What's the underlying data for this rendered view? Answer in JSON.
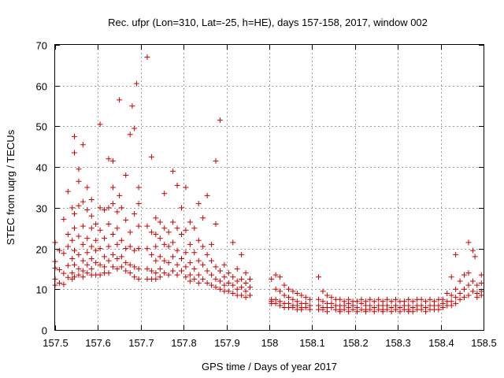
{
  "chart_data": {
    "type": "scatter",
    "title": "Rec. ufpr (Lon=310, Lat=-25, h=HE), days 157-158, 2017, window 002",
    "xlabel": "GPS time / Days of year 2017",
    "ylabel": "STEC from uqrg / TECUs",
    "xlim": [
      157.5,
      158.5
    ],
    "ylim": [
      0,
      70
    ],
    "xticks": [
      157.5,
      157.6,
      157.7,
      157.8,
      157.9,
      158.0,
      158.1,
      158.2,
      158.3,
      158.4,
      158.5
    ],
    "xtick_labels": [
      "157.5",
      "157.6",
      "157.7",
      "157.8",
      "157.9",
      "158",
      "158.1",
      "158.2",
      "158.3",
      "158.4",
      "158.5"
    ],
    "yticks": [
      0,
      10,
      20,
      30,
      40,
      50,
      60,
      70
    ],
    "ytick_labels": [
      "0",
      "10",
      "20",
      "30",
      "40",
      "50",
      "60",
      "70"
    ],
    "grid": true,
    "marker": "+",
    "color": "#cc0000",
    "points": [
      [
        157.5,
        21.5
      ],
      [
        157.5,
        16.8
      ],
      [
        157.5,
        15.2
      ],
      [
        157.5,
        12.5
      ],
      [
        157.5,
        11.0
      ],
      [
        157.51,
        19.5
      ],
      [
        157.51,
        14.8
      ],
      [
        157.51,
        11.5
      ],
      [
        157.52,
        27.2
      ],
      [
        157.52,
        18.8
      ],
      [
        157.52,
        13.9
      ],
      [
        157.52,
        11.2
      ],
      [
        157.53,
        34.0
      ],
      [
        157.53,
        23.5
      ],
      [
        157.53,
        20.5
      ],
      [
        157.53,
        15.8
      ],
      [
        157.53,
        12.9
      ],
      [
        157.54,
        30.0
      ],
      [
        157.54,
        22.0
      ],
      [
        157.54,
        17.5
      ],
      [
        157.54,
        14.0
      ],
      [
        157.54,
        12.5
      ],
      [
        157.545,
        47.5
      ],
      [
        157.545,
        43.5
      ],
      [
        157.545,
        28.5
      ],
      [
        157.545,
        25.0
      ],
      [
        157.545,
        19.5
      ],
      [
        157.545,
        16.0
      ],
      [
        157.545,
        13.0
      ],
      [
        157.555,
        39.5
      ],
      [
        157.555,
        36.5
      ],
      [
        157.555,
        30.5
      ],
      [
        157.555,
        23.0
      ],
      [
        157.555,
        18.5
      ],
      [
        157.555,
        15.0
      ],
      [
        157.555,
        13.5
      ],
      [
        157.565,
        45.5
      ],
      [
        157.565,
        31.5
      ],
      [
        157.565,
        25.5
      ],
      [
        157.565,
        21.0
      ],
      [
        157.565,
        17.0
      ],
      [
        157.565,
        14.5
      ],
      [
        157.565,
        13.0
      ],
      [
        157.575,
        35.0
      ],
      [
        157.575,
        29.5
      ],
      [
        157.575,
        22.5
      ],
      [
        157.575,
        19.0
      ],
      [
        157.575,
        16.0
      ],
      [
        157.575,
        14.0
      ],
      [
        157.585,
        32.0
      ],
      [
        157.585,
        28.0
      ],
      [
        157.585,
        25.0
      ],
      [
        157.585,
        20.5
      ],
      [
        157.585,
        17.5
      ],
      [
        157.585,
        15.0
      ],
      [
        157.585,
        13.5
      ],
      [
        157.595,
        26.0
      ],
      [
        157.595,
        22.0
      ],
      [
        157.595,
        19.5
      ],
      [
        157.595,
        16.5
      ],
      [
        157.595,
        13.5
      ],
      [
        157.605,
        50.5
      ],
      [
        157.605,
        30.0
      ],
      [
        157.605,
        24.5
      ],
      [
        157.605,
        20.0
      ],
      [
        157.605,
        16.0
      ],
      [
        157.605,
        13.5
      ],
      [
        157.615,
        29.5
      ],
      [
        157.615,
        22.5
      ],
      [
        157.615,
        18.0
      ],
      [
        157.615,
        15.5
      ],
      [
        157.615,
        14.0
      ],
      [
        157.625,
        42.0
      ],
      [
        157.625,
        30.0
      ],
      [
        157.625,
        26.0
      ],
      [
        157.625,
        20.5
      ],
      [
        157.625,
        17.0
      ],
      [
        157.625,
        14.0
      ],
      [
        157.635,
        41.5
      ],
      [
        157.635,
        35.0
      ],
      [
        157.635,
        31.0
      ],
      [
        157.635,
        23.5
      ],
      [
        157.635,
        18.5
      ],
      [
        157.635,
        15.5
      ],
      [
        157.645,
        29.0
      ],
      [
        157.645,
        25.0
      ],
      [
        157.645,
        21.0
      ],
      [
        157.645,
        17.5
      ],
      [
        157.645,
        15.0
      ],
      [
        157.65,
        56.5
      ],
      [
        157.65,
        33.0
      ],
      [
        157.655,
        30.0
      ],
      [
        157.655,
        22.0
      ],
      [
        157.655,
        18.0
      ],
      [
        157.655,
        15.5
      ],
      [
        157.665,
        38.0
      ],
      [
        157.665,
        27.0
      ],
      [
        157.665,
        20.0
      ],
      [
        157.665,
        16.5
      ],
      [
        157.665,
        14.5
      ],
      [
        157.675,
        48.0
      ],
      [
        157.675,
        24.0
      ],
      [
        157.675,
        20.5
      ],
      [
        157.675,
        16.0
      ],
      [
        157.675,
        14.0
      ],
      [
        157.68,
        55.0
      ],
      [
        157.685,
        49.5
      ],
      [
        157.685,
        28.5
      ],
      [
        157.685,
        19.5
      ],
      [
        157.685,
        15.5
      ],
      [
        157.685,
        13.0
      ],
      [
        157.69,
        60.5
      ],
      [
        157.695,
        35.0
      ],
      [
        157.695,
        31.0
      ],
      [
        157.695,
        25.5
      ],
      [
        157.695,
        20.0
      ],
      [
        157.695,
        15.0
      ],
      [
        157.695,
        12.5
      ],
      [
        157.715,
        67.0
      ],
      [
        157.715,
        25.5
      ],
      [
        157.715,
        20.0
      ],
      [
        157.715,
        15.0
      ],
      [
        157.715,
        12.5
      ],
      [
        157.725,
        42.5
      ],
      [
        157.725,
        24.0
      ],
      [
        157.725,
        18.5
      ],
      [
        157.725,
        14.5
      ],
      [
        157.725,
        12.5
      ],
      [
        157.735,
        27.5
      ],
      [
        157.735,
        23.5
      ],
      [
        157.735,
        20.5
      ],
      [
        157.735,
        17.0
      ],
      [
        157.735,
        14.0
      ],
      [
        157.735,
        12.5
      ],
      [
        157.745,
        26.5
      ],
      [
        157.745,
        22.5
      ],
      [
        157.745,
        18.0
      ],
      [
        157.745,
        15.0
      ],
      [
        157.745,
        13.0
      ],
      [
        157.755,
        33.5
      ],
      [
        157.755,
        25.0
      ],
      [
        157.755,
        21.0
      ],
      [
        157.755,
        17.0
      ],
      [
        157.755,
        14.0
      ],
      [
        157.765,
        24.0
      ],
      [
        157.765,
        20.5
      ],
      [
        157.765,
        16.5
      ],
      [
        157.765,
        13.5
      ],
      [
        157.775,
        39.0
      ],
      [
        157.775,
        26.5
      ],
      [
        157.775,
        21.5
      ],
      [
        157.775,
        18.0
      ],
      [
        157.775,
        14.5
      ],
      [
        157.785,
        35.5
      ],
      [
        157.785,
        25.0
      ],
      [
        157.785,
        19.5
      ],
      [
        157.785,
        16.0
      ],
      [
        157.785,
        13.5
      ],
      [
        157.795,
        30.0
      ],
      [
        157.795,
        23.5
      ],
      [
        157.795,
        17.5
      ],
      [
        157.795,
        14.5
      ],
      [
        157.805,
        35.0
      ],
      [
        157.805,
        24.5
      ],
      [
        157.805,
        19.0
      ],
      [
        157.805,
        15.5
      ],
      [
        157.805,
        13.0
      ],
      [
        157.815,
        26.5
      ],
      [
        157.815,
        21.0
      ],
      [
        157.815,
        16.5
      ],
      [
        157.815,
        13.5
      ],
      [
        157.815,
        12.0
      ],
      [
        157.825,
        25.0
      ],
      [
        157.825,
        19.0
      ],
      [
        157.825,
        15.0
      ],
      [
        157.825,
        12.5
      ],
      [
        157.835,
        31.0
      ],
      [
        157.835,
        22.0
      ],
      [
        157.835,
        17.0
      ],
      [
        157.835,
        13.5
      ],
      [
        157.835,
        11.5
      ],
      [
        157.845,
        27.5
      ],
      [
        157.845,
        20.5
      ],
      [
        157.845,
        16.0
      ],
      [
        157.845,
        12.5
      ],
      [
        157.855,
        33.0
      ],
      [
        157.855,
        18.5
      ],
      [
        157.855,
        14.5
      ],
      [
        157.855,
        11.5
      ],
      [
        157.865,
        21.0
      ],
      [
        157.865,
        17.0
      ],
      [
        157.865,
        13.5
      ],
      [
        157.865,
        11.0
      ],
      [
        157.875,
        41.5
      ],
      [
        157.875,
        26.0
      ],
      [
        157.875,
        15.5
      ],
      [
        157.875,
        12.5
      ],
      [
        157.875,
        10.5
      ],
      [
        157.885,
        51.5
      ],
      [
        157.885,
        14.5
      ],
      [
        157.885,
        12.0
      ],
      [
        157.885,
        10.0
      ],
      [
        157.895,
        16.0
      ],
      [
        157.895,
        13.0
      ],
      [
        157.895,
        11.0
      ],
      [
        157.895,
        9.5
      ],
      [
        157.905,
        14.0
      ],
      [
        157.905,
        11.5
      ],
      [
        157.905,
        9.5
      ],
      [
        157.915,
        21.5
      ],
      [
        157.915,
        13.0
      ],
      [
        157.915,
        11.0
      ],
      [
        157.915,
        9.0
      ],
      [
        157.925,
        15.0
      ],
      [
        157.925,
        12.0
      ],
      [
        157.925,
        10.0
      ],
      [
        157.925,
        8.5
      ],
      [
        157.935,
        18.5
      ],
      [
        157.935,
        12.5
      ],
      [
        157.935,
        10.5
      ],
      [
        157.935,
        8.5
      ],
      [
        157.945,
        14.0
      ],
      [
        157.945,
        11.5
      ],
      [
        157.945,
        9.5
      ],
      [
        157.945,
        8.0
      ],
      [
        157.955,
        12.5
      ],
      [
        157.955,
        10.5
      ],
      [
        157.955,
        8.5
      ],
      [
        158.005,
        12.5
      ],
      [
        158.005,
        7.5
      ],
      [
        158.005,
        7.0
      ],
      [
        158.005,
        6.5
      ],
      [
        158.015,
        13.5
      ],
      [
        158.015,
        10.0
      ],
      [
        158.015,
        7.5
      ],
      [
        158.015,
        6.5
      ],
      [
        158.025,
        13.0
      ],
      [
        158.025,
        9.5
      ],
      [
        158.025,
        7.0
      ],
      [
        158.025,
        6.0
      ],
      [
        158.035,
        11.0
      ],
      [
        158.035,
        8.5
      ],
      [
        158.035,
        6.5
      ],
      [
        158.035,
        5.5
      ],
      [
        158.045,
        10.0
      ],
      [
        158.045,
        8.0
      ],
      [
        158.045,
        6.5
      ],
      [
        158.045,
        5.5
      ],
      [
        158.055,
        9.5
      ],
      [
        158.055,
        7.5
      ],
      [
        158.055,
        6.0
      ],
      [
        158.055,
        5.5
      ],
      [
        158.065,
        9.0
      ],
      [
        158.065,
        7.0
      ],
      [
        158.065,
        6.0
      ],
      [
        158.065,
        5.0
      ],
      [
        158.075,
        8.5
      ],
      [
        158.075,
        6.5
      ],
      [
        158.075,
        5.5
      ],
      [
        158.075,
        5.0
      ],
      [
        158.085,
        8.0
      ],
      [
        158.085,
        6.5
      ],
      [
        158.085,
        5.5
      ],
      [
        158.095,
        7.5
      ],
      [
        158.095,
        6.0
      ],
      [
        158.095,
        5.0
      ],
      [
        158.115,
        13.0
      ],
      [
        158.115,
        7.5
      ],
      [
        158.115,
        6.0
      ],
      [
        158.115,
        5.0
      ],
      [
        158.125,
        9.5
      ],
      [
        158.125,
        7.0
      ],
      [
        158.125,
        5.5
      ],
      [
        158.125,
        5.0
      ],
      [
        158.135,
        8.5
      ],
      [
        158.135,
        6.5
      ],
      [
        158.135,
        5.5
      ],
      [
        158.135,
        4.5
      ],
      [
        158.145,
        8.0
      ],
      [
        158.145,
        6.5
      ],
      [
        158.145,
        5.5
      ],
      [
        158.155,
        7.5
      ],
      [
        158.155,
        6.0
      ],
      [
        158.155,
        5.0
      ],
      [
        158.165,
        7.5
      ],
      [
        158.165,
        6.0
      ],
      [
        158.165,
        5.0
      ],
      [
        158.165,
        4.5
      ],
      [
        158.175,
        7.0
      ],
      [
        158.175,
        6.0
      ],
      [
        158.175,
        5.0
      ],
      [
        158.185,
        7.5
      ],
      [
        158.185,
        6.5
      ],
      [
        158.185,
        5.5
      ],
      [
        158.185,
        4.5
      ],
      [
        158.195,
        7.0
      ],
      [
        158.195,
        6.0
      ],
      [
        158.195,
        5.0
      ],
      [
        158.205,
        7.0
      ],
      [
        158.205,
        5.5
      ],
      [
        158.205,
        4.5
      ],
      [
        158.215,
        7.5
      ],
      [
        158.215,
        6.5
      ],
      [
        158.215,
        5.0
      ],
      [
        158.225,
        7.0
      ],
      [
        158.225,
        6.0
      ],
      [
        158.225,
        5.0
      ],
      [
        158.225,
        4.5
      ],
      [
        158.235,
        7.5
      ],
      [
        158.235,
        6.0
      ],
      [
        158.235,
        5.0
      ],
      [
        158.245,
        7.0
      ],
      [
        158.245,
        5.5
      ],
      [
        158.245,
        4.5
      ],
      [
        158.255,
        7.5
      ],
      [
        158.255,
        6.0
      ],
      [
        158.255,
        5.0
      ],
      [
        158.265,
        7.0
      ],
      [
        158.265,
        6.0
      ],
      [
        158.265,
        5.0
      ],
      [
        158.265,
        4.5
      ],
      [
        158.275,
        7.5
      ],
      [
        158.275,
        6.0
      ],
      [
        158.275,
        5.0
      ],
      [
        158.285,
        7.0
      ],
      [
        158.285,
        5.5
      ],
      [
        158.285,
        4.5
      ],
      [
        158.295,
        7.5
      ],
      [
        158.295,
        6.0
      ],
      [
        158.295,
        5.0
      ],
      [
        158.305,
        7.0
      ],
      [
        158.305,
        5.5
      ],
      [
        158.305,
        4.5
      ],
      [
        158.315,
        7.0
      ],
      [
        158.315,
        6.0
      ],
      [
        158.315,
        5.0
      ],
      [
        158.325,
        7.5
      ],
      [
        158.325,
        6.0
      ],
      [
        158.325,
        5.0
      ],
      [
        158.325,
        4.5
      ],
      [
        158.335,
        7.0
      ],
      [
        158.335,
        5.5
      ],
      [
        158.335,
        4.5
      ],
      [
        158.345,
        7.5
      ],
      [
        158.345,
        6.0
      ],
      [
        158.345,
        5.0
      ],
      [
        158.355,
        7.5
      ],
      [
        158.355,
        6.0
      ],
      [
        158.355,
        5.0
      ],
      [
        158.365,
        7.0
      ],
      [
        158.365,
        5.5
      ],
      [
        158.365,
        4.5
      ],
      [
        158.375,
        7.5
      ],
      [
        158.375,
        6.0
      ],
      [
        158.375,
        5.0
      ],
      [
        158.385,
        7.0
      ],
      [
        158.385,
        6.0
      ],
      [
        158.385,
        5.0
      ],
      [
        158.395,
        7.5
      ],
      [
        158.395,
        6.0
      ],
      [
        158.395,
        5.0
      ],
      [
        158.405,
        7.5
      ],
      [
        158.405,
        6.5
      ],
      [
        158.405,
        5.5
      ],
      [
        158.415,
        9.0
      ],
      [
        158.415,
        7.0
      ],
      [
        158.415,
        6.0
      ],
      [
        158.425,
        13.0
      ],
      [
        158.425,
        8.5
      ],
      [
        158.425,
        7.0
      ],
      [
        158.425,
        6.0
      ],
      [
        158.435,
        18.5
      ],
      [
        158.435,
        10.0
      ],
      [
        158.435,
        8.0
      ],
      [
        158.435,
        6.5
      ],
      [
        158.445,
        12.0
      ],
      [
        158.445,
        9.0
      ],
      [
        158.445,
        7.5
      ],
      [
        158.455,
        13.5
      ],
      [
        158.455,
        10.0
      ],
      [
        158.455,
        8.0
      ],
      [
        158.465,
        21.5
      ],
      [
        158.465,
        14.0
      ],
      [
        158.465,
        11.0
      ],
      [
        158.465,
        8.5
      ],
      [
        158.475,
        19.5
      ],
      [
        158.475,
        12.0
      ],
      [
        158.475,
        9.5
      ],
      [
        158.48,
        18.0
      ],
      [
        158.485,
        11.0
      ],
      [
        158.485,
        9.0
      ],
      [
        158.485,
        8.0
      ],
      [
        158.495,
        13.5
      ],
      [
        158.495,
        11.5
      ],
      [
        158.495,
        9.5
      ],
      [
        158.495,
        8.5
      ]
    ]
  }
}
